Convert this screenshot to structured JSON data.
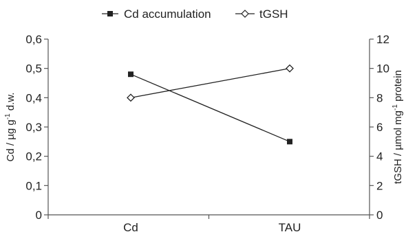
{
  "chart_data": {
    "type": "line",
    "categories": [
      "Cd",
      "TAU"
    ],
    "series": [
      {
        "name": "Cd accumulation",
        "axis": "left",
        "marker": "filled-square",
        "values": [
          0.48,
          0.25
        ]
      },
      {
        "name": "tGSH",
        "axis": "right",
        "marker": "open-diamond",
        "values": [
          8,
          10
        ]
      }
    ],
    "left_axis": {
      "label_parts": [
        "Cd / µg g",
        "-1",
        " d.w."
      ],
      "ylim": [
        0,
        0.6
      ],
      "ticks": [
        0,
        0.1,
        0.2,
        0.3,
        0.4,
        0.5,
        0.6
      ],
      "tick_labels": [
        "0",
        "0,1",
        "0,2",
        "0,3",
        "0,4",
        "0,5",
        "0,6"
      ]
    },
    "right_axis": {
      "label_parts": [
        "tGSH / µmol mg",
        "-1",
        " protein"
      ],
      "ylim": [
        0,
        12
      ],
      "ticks": [
        0,
        2,
        4,
        6,
        8,
        10,
        12
      ],
      "tick_labels": [
        "0",
        "2",
        "4",
        "6",
        "8",
        "10",
        "12"
      ]
    },
    "xlabel": "",
    "grid": false,
    "legend_position": "top-center",
    "colors": {
      "line": "#222222",
      "axis": "#555555",
      "text": "#222222"
    }
  }
}
